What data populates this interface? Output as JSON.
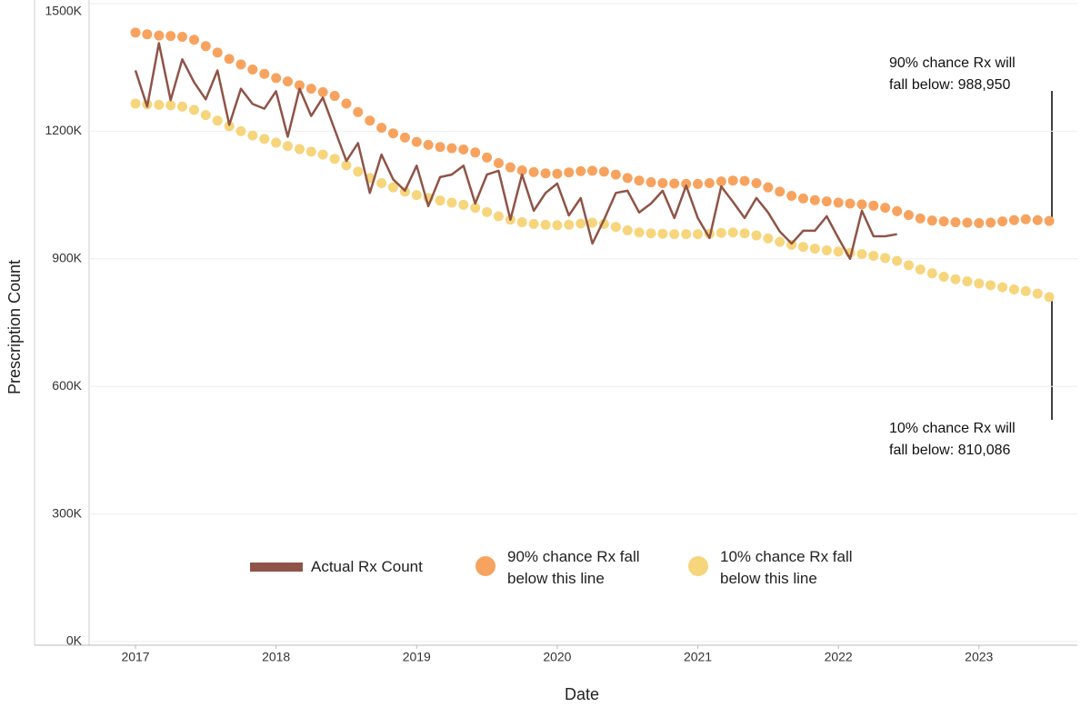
{
  "chart_data": {
    "type": "line",
    "x_label": "Date",
    "y_label": "Prescription Count",
    "xlim": [
      2016.67,
      2023.7
    ],
    "xticks": [
      2017,
      2018,
      2019,
      2020,
      2021,
      2022,
      2023
    ],
    "ylim": [
      0,
      1500000
    ],
    "yticks": [
      {
        "value": 0,
        "label": "0K"
      },
      {
        "value": 300000,
        "label": "300K"
      },
      {
        "value": 600000,
        "label": "600K"
      },
      {
        "value": 900000,
        "label": "900K"
      },
      {
        "value": 1200000,
        "label": "1200K"
      },
      {
        "value": 1500000,
        "label": "1500K"
      }
    ],
    "grid": true,
    "legend": "bottom",
    "series": [
      {
        "name": "Actual Rx Count",
        "style": "line",
        "color": "#8f5447",
        "x": [
          2017,
          2017.083,
          2017.167,
          2017.25,
          2017.333,
          2017.417,
          2017.5,
          2017.583,
          2017.667,
          2017.75,
          2017.833,
          2017.917,
          2018,
          2018.083,
          2018.167,
          2018.25,
          2018.333,
          2018.417,
          2018.5,
          2018.583,
          2018.667,
          2018.75,
          2018.833,
          2018.917,
          2019,
          2019.083,
          2019.167,
          2019.25,
          2019.333,
          2019.417,
          2019.5,
          2019.583,
          2019.667,
          2019.75,
          2019.833,
          2019.917,
          2020,
          2020.083,
          2020.167,
          2020.25,
          2020.333,
          2020.417,
          2020.5,
          2020.583,
          2020.667,
          2020.75,
          2020.833,
          2020.917,
          2021,
          2021.083,
          2021.167,
          2021.25,
          2021.333,
          2021.417,
          2021.5,
          2021.583,
          2021.667,
          2021.75,
          2021.833,
          2021.917,
          2022,
          2022.083,
          2022.167,
          2022.25,
          2022.333,
          2022.417
        ],
        "values": [
          1343000,
          1258000,
          1407000,
          1273000,
          1369000,
          1315000,
          1275000,
          1343000,
          1215000,
          1300000,
          1264000,
          1253000,
          1294000,
          1187000,
          1300000,
          1236000,
          1279000,
          1204000,
          1130000,
          1172000,
          1055000,
          1145000,
          1087000,
          1060000,
          1119000,
          1024000,
          1092000,
          1098000,
          1119000,
          1030000,
          1098000,
          1107000,
          992000,
          1098000,
          1013000,
          1055000,
          1077000,
          1002000,
          1043000,
          936000,
          992000,
          1055000,
          1060000,
          1009000,
          1030000,
          1060000,
          996000,
          1072000,
          996000,
          949000,
          1070000,
          1034000,
          996000,
          1043000,
          1009000,
          964000,
          936000,
          966000,
          966000,
          1000000,
          949000,
          900000,
          1013000,
          953000,
          953000,
          958000
        ]
      },
      {
        "name": "90% chance Rx fall below this line",
        "style": "dots",
        "color": "#f7a35f",
        "x": [
          2017,
          2017.083,
          2017.167,
          2017.25,
          2017.333,
          2017.417,
          2017.5,
          2017.583,
          2017.667,
          2017.75,
          2017.833,
          2017.917,
          2018,
          2018.083,
          2018.167,
          2018.25,
          2018.333,
          2018.417,
          2018.5,
          2018.583,
          2018.667,
          2018.75,
          2018.833,
          2018.917,
          2019,
          2019.083,
          2019.167,
          2019.25,
          2019.333,
          2019.417,
          2019.5,
          2019.583,
          2019.667,
          2019.75,
          2019.833,
          2019.917,
          2020,
          2020.083,
          2020.167,
          2020.25,
          2020.333,
          2020.417,
          2020.5,
          2020.583,
          2020.667,
          2020.75,
          2020.833,
          2020.917,
          2021,
          2021.083,
          2021.167,
          2021.25,
          2021.333,
          2021.417,
          2021.5,
          2021.583,
          2021.667,
          2021.75,
          2021.833,
          2021.917,
          2022,
          2022.083,
          2022.167,
          2022.25,
          2022.333,
          2022.417,
          2022.5,
          2022.583,
          2022.667,
          2022.75,
          2022.833,
          2022.917,
          2023,
          2023.083,
          2023.167,
          2023.25,
          2023.333,
          2023.417,
          2023.5
        ],
        "values": [
          1432000,
          1428000,
          1425000,
          1424000,
          1422000,
          1415000,
          1400000,
          1385000,
          1370000,
          1357000,
          1345000,
          1335000,
          1325000,
          1317000,
          1308000,
          1300000,
          1292000,
          1283000,
          1265000,
          1245000,
          1225000,
          1208000,
          1195000,
          1185000,
          1175000,
          1168000,
          1163000,
          1160000,
          1157000,
          1150000,
          1138000,
          1125000,
          1115000,
          1108000,
          1104000,
          1101000,
          1100000,
          1103000,
          1106000,
          1107000,
          1105000,
          1098000,
          1090000,
          1084000,
          1080000,
          1078000,
          1077000,
          1076000,
          1076000,
          1078000,
          1082000,
          1084000,
          1083000,
          1078000,
          1068000,
          1058000,
          1048000,
          1042000,
          1038000,
          1035000,
          1032000,
          1030000,
          1028000,
          1025000,
          1020000,
          1012000,
          1003000,
          995000,
          990000,
          988000,
          986000,
          985000,
          984000,
          985000,
          988000,
          991000,
          993000,
          991000,
          988950
        ]
      },
      {
        "name": "10% chance Rx fall below this line",
        "style": "dots",
        "color": "#f6d57c",
        "x": [
          2017,
          2017.083,
          2017.167,
          2017.25,
          2017.333,
          2017.417,
          2017.5,
          2017.583,
          2017.667,
          2017.75,
          2017.833,
          2017.917,
          2018,
          2018.083,
          2018.167,
          2018.25,
          2018.333,
          2018.417,
          2018.5,
          2018.583,
          2018.667,
          2018.75,
          2018.833,
          2018.917,
          2019,
          2019.083,
          2019.167,
          2019.25,
          2019.333,
          2019.417,
          2019.5,
          2019.583,
          2019.667,
          2019.75,
          2019.833,
          2019.917,
          2020,
          2020.083,
          2020.167,
          2020.25,
          2020.333,
          2020.417,
          2020.5,
          2020.583,
          2020.667,
          2020.75,
          2020.833,
          2020.917,
          2021,
          2021.083,
          2021.167,
          2021.25,
          2021.333,
          2021.417,
          2021.5,
          2021.583,
          2021.667,
          2021.75,
          2021.833,
          2021.917,
          2022,
          2022.083,
          2022.167,
          2022.25,
          2022.333,
          2022.417,
          2022.5,
          2022.583,
          2022.667,
          2022.75,
          2022.833,
          2022.917,
          2023,
          2023.083,
          2023.167,
          2023.25,
          2023.333,
          2023.417,
          2023.5
        ],
        "values": [
          1265000,
          1263000,
          1262000,
          1261000,
          1258000,
          1250000,
          1238000,
          1225000,
          1212000,
          1200000,
          1190000,
          1182000,
          1173000,
          1165000,
          1158000,
          1152000,
          1145000,
          1135000,
          1120000,
          1105000,
          1090000,
          1078000,
          1068000,
          1058000,
          1050000,
          1043000,
          1037000,
          1032000,
          1027000,
          1020000,
          1010000,
          1000000,
          992000,
          986000,
          982000,
          980000,
          979000,
          980000,
          983000,
          985000,
          982000,
          975000,
          967000,
          962000,
          960000,
          959000,
          958000,
          958000,
          958000,
          959000,
          961000,
          962000,
          960000,
          955000,
          948000,
          940000,
          933000,
          928000,
          924000,
          920000,
          917000,
          914000,
          911000,
          907000,
          902000,
          895000,
          885000,
          875000,
          866000,
          858000,
          852000,
          847000,
          842000,
          838000,
          833000,
          828000,
          824000,
          818000,
          810086
        ]
      }
    ],
    "annotations": [
      {
        "lines": [
          "90% chance Rx will",
          "fall below: 988,950"
        ]
      },
      {
        "lines": [
          "10% chance Rx will",
          "fall below: 810,086"
        ]
      }
    ]
  }
}
